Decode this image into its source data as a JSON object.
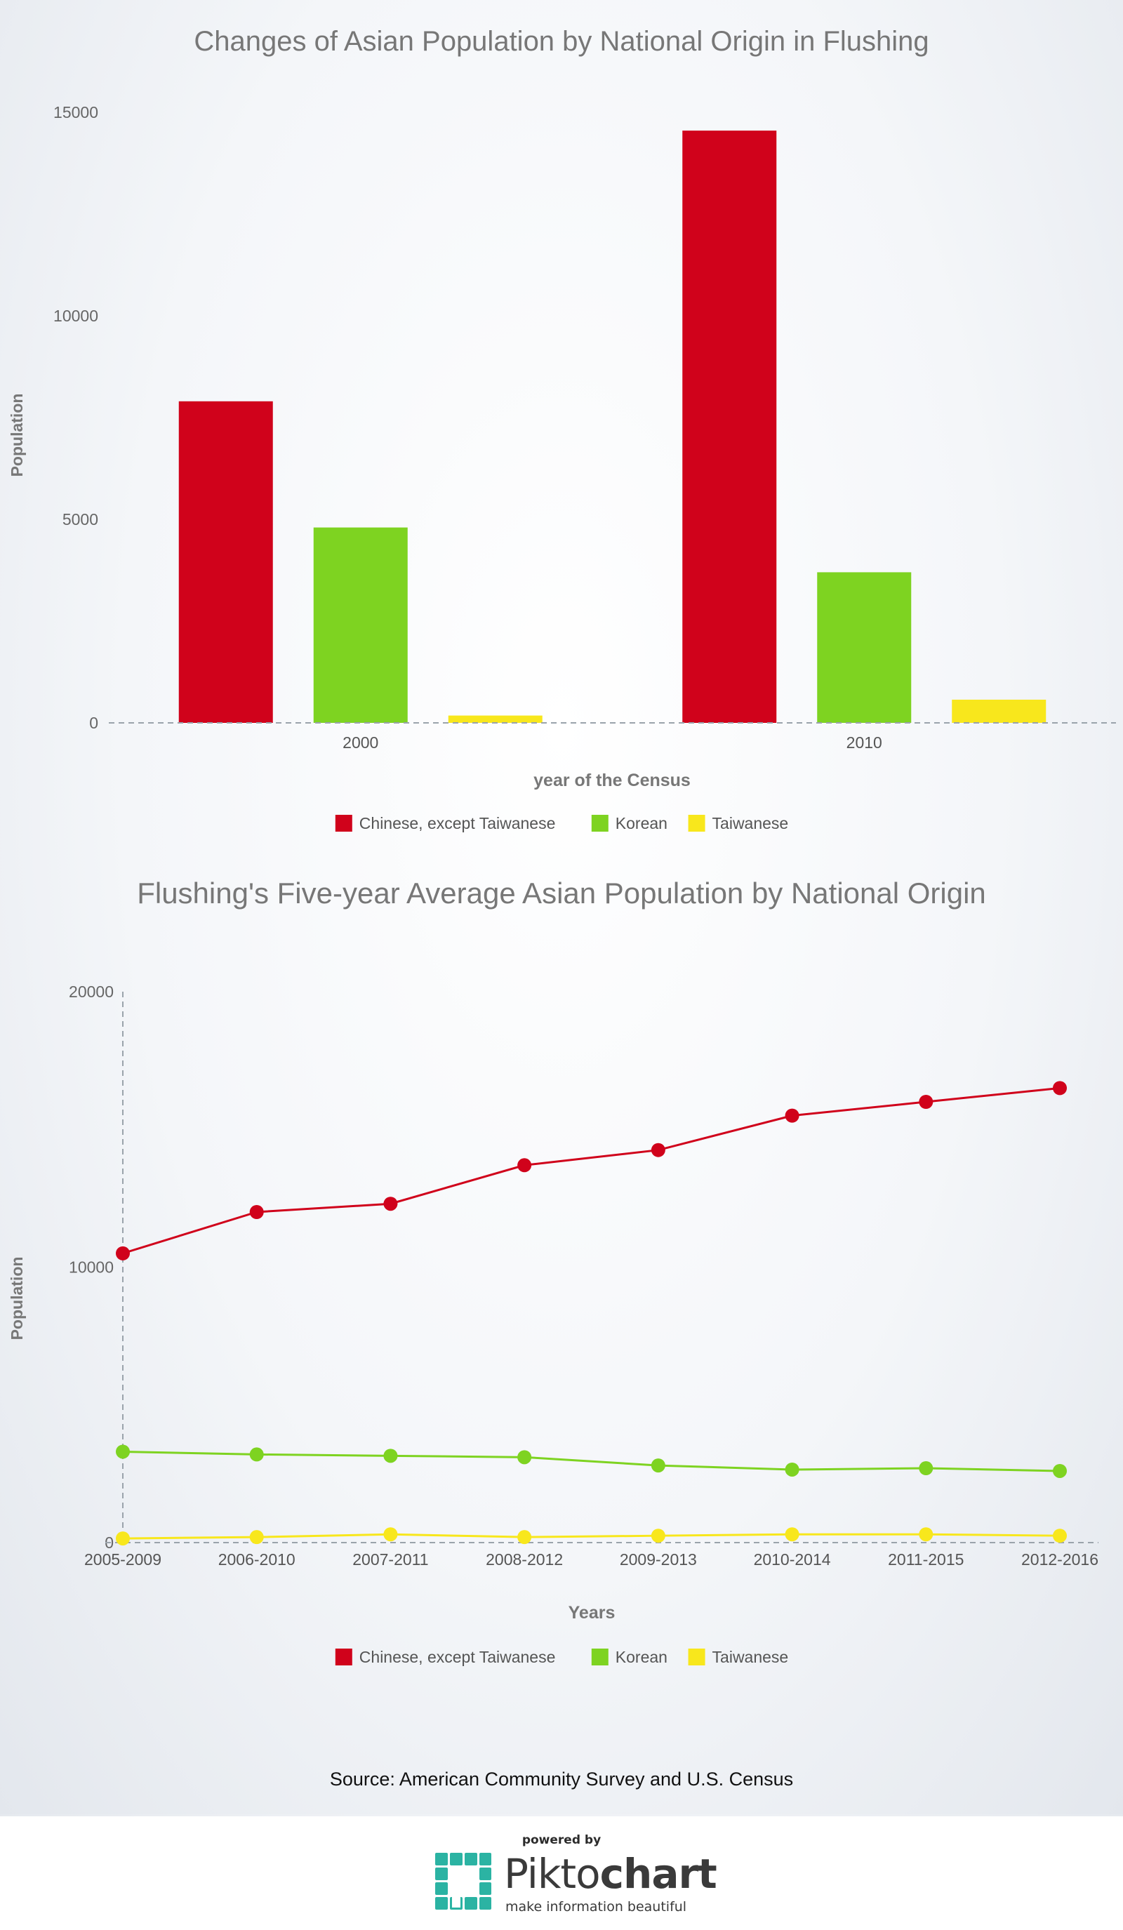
{
  "chart_data": [
    {
      "type": "bar",
      "title": "Changes of Asian Population by National Origin in Flushing",
      "xlabel": "year of the Census",
      "ylabel": "Population",
      "categories": [
        "2000",
        "2010"
      ],
      "series": [
        {
          "name": "Chinese, except Taiwanese",
          "color": "#d0021b",
          "values": [
            7900,
            14550
          ]
        },
        {
          "name": "Korean",
          "color": "#7ed321",
          "values": [
            4800,
            3700
          ]
        },
        {
          "name": "Taiwanese",
          "color": "#f8e71c",
          "values": [
            180,
            570
          ]
        }
      ],
      "ylim": [
        0,
        15000
      ],
      "yticks": [
        "0",
        "5000",
        "10000",
        "15000"
      ],
      "legend_position": "bottom"
    },
    {
      "type": "line",
      "title": "Flushing's Five-year Average Asian Population by National Origin",
      "xlabel": "Years",
      "ylabel": "Population",
      "categories": [
        "2005-2009",
        "2006-2010",
        "2007-2011",
        "2008-2012",
        "2009-2013",
        "2010-2014",
        "2011-2015",
        "2012-2016"
      ],
      "series": [
        {
          "name": "Chinese, except Taiwanese",
          "color": "#d0021b",
          "values": [
            10500,
            12000,
            12300,
            13700,
            14250,
            15500,
            16000,
            16500
          ]
        },
        {
          "name": "Korean",
          "color": "#7ed321",
          "values": [
            3300,
            3200,
            3150,
            3100,
            2800,
            2650,
            2700,
            2600
          ]
        },
        {
          "name": "Taiwanese",
          "color": "#f8e71c",
          "values": [
            150,
            200,
            300,
            200,
            250,
            300,
            300,
            250
          ]
        }
      ],
      "ylim": [
        0,
        20000
      ],
      "yticks": [
        "0",
        "10000",
        "20000"
      ],
      "legend_position": "bottom"
    }
  ],
  "source": "Source: American Community Survey and U.S. Census",
  "footer": {
    "powered_by": "powered by",
    "logo_light": "Pikto",
    "logo_bold": "chart",
    "tagline": "make information beautiful",
    "logo_icon": "piktochart-logo-icon"
  }
}
